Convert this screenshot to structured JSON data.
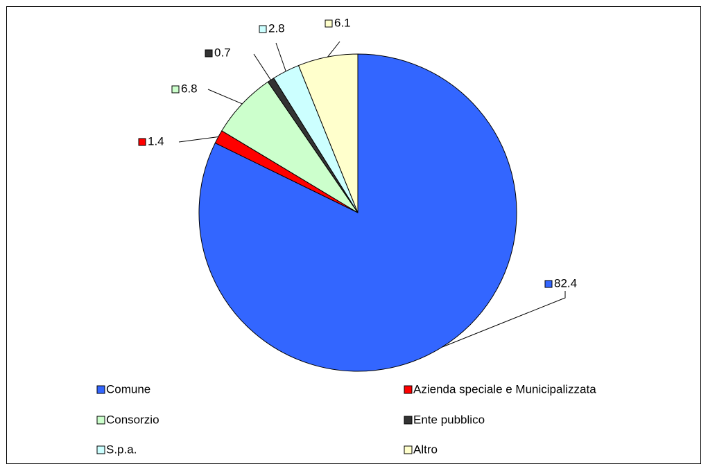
{
  "chart_data": {
    "type": "pie",
    "categories": [
      "Comune",
      "Azienda speciale e Municipalizzata",
      "Consorzio",
      "Ente pubblico",
      "S.p.a.",
      "Altro"
    ],
    "values": [
      82.4,
      1.4,
      6.8,
      0.7,
      2.8,
      6.1
    ],
    "colors": [
      "#3366FF",
      "#FF0000",
      "#CCFFCC",
      "#333333",
      "#CCFFFF",
      "#FFFFCC"
    ],
    "legend": "bottom"
  }
}
